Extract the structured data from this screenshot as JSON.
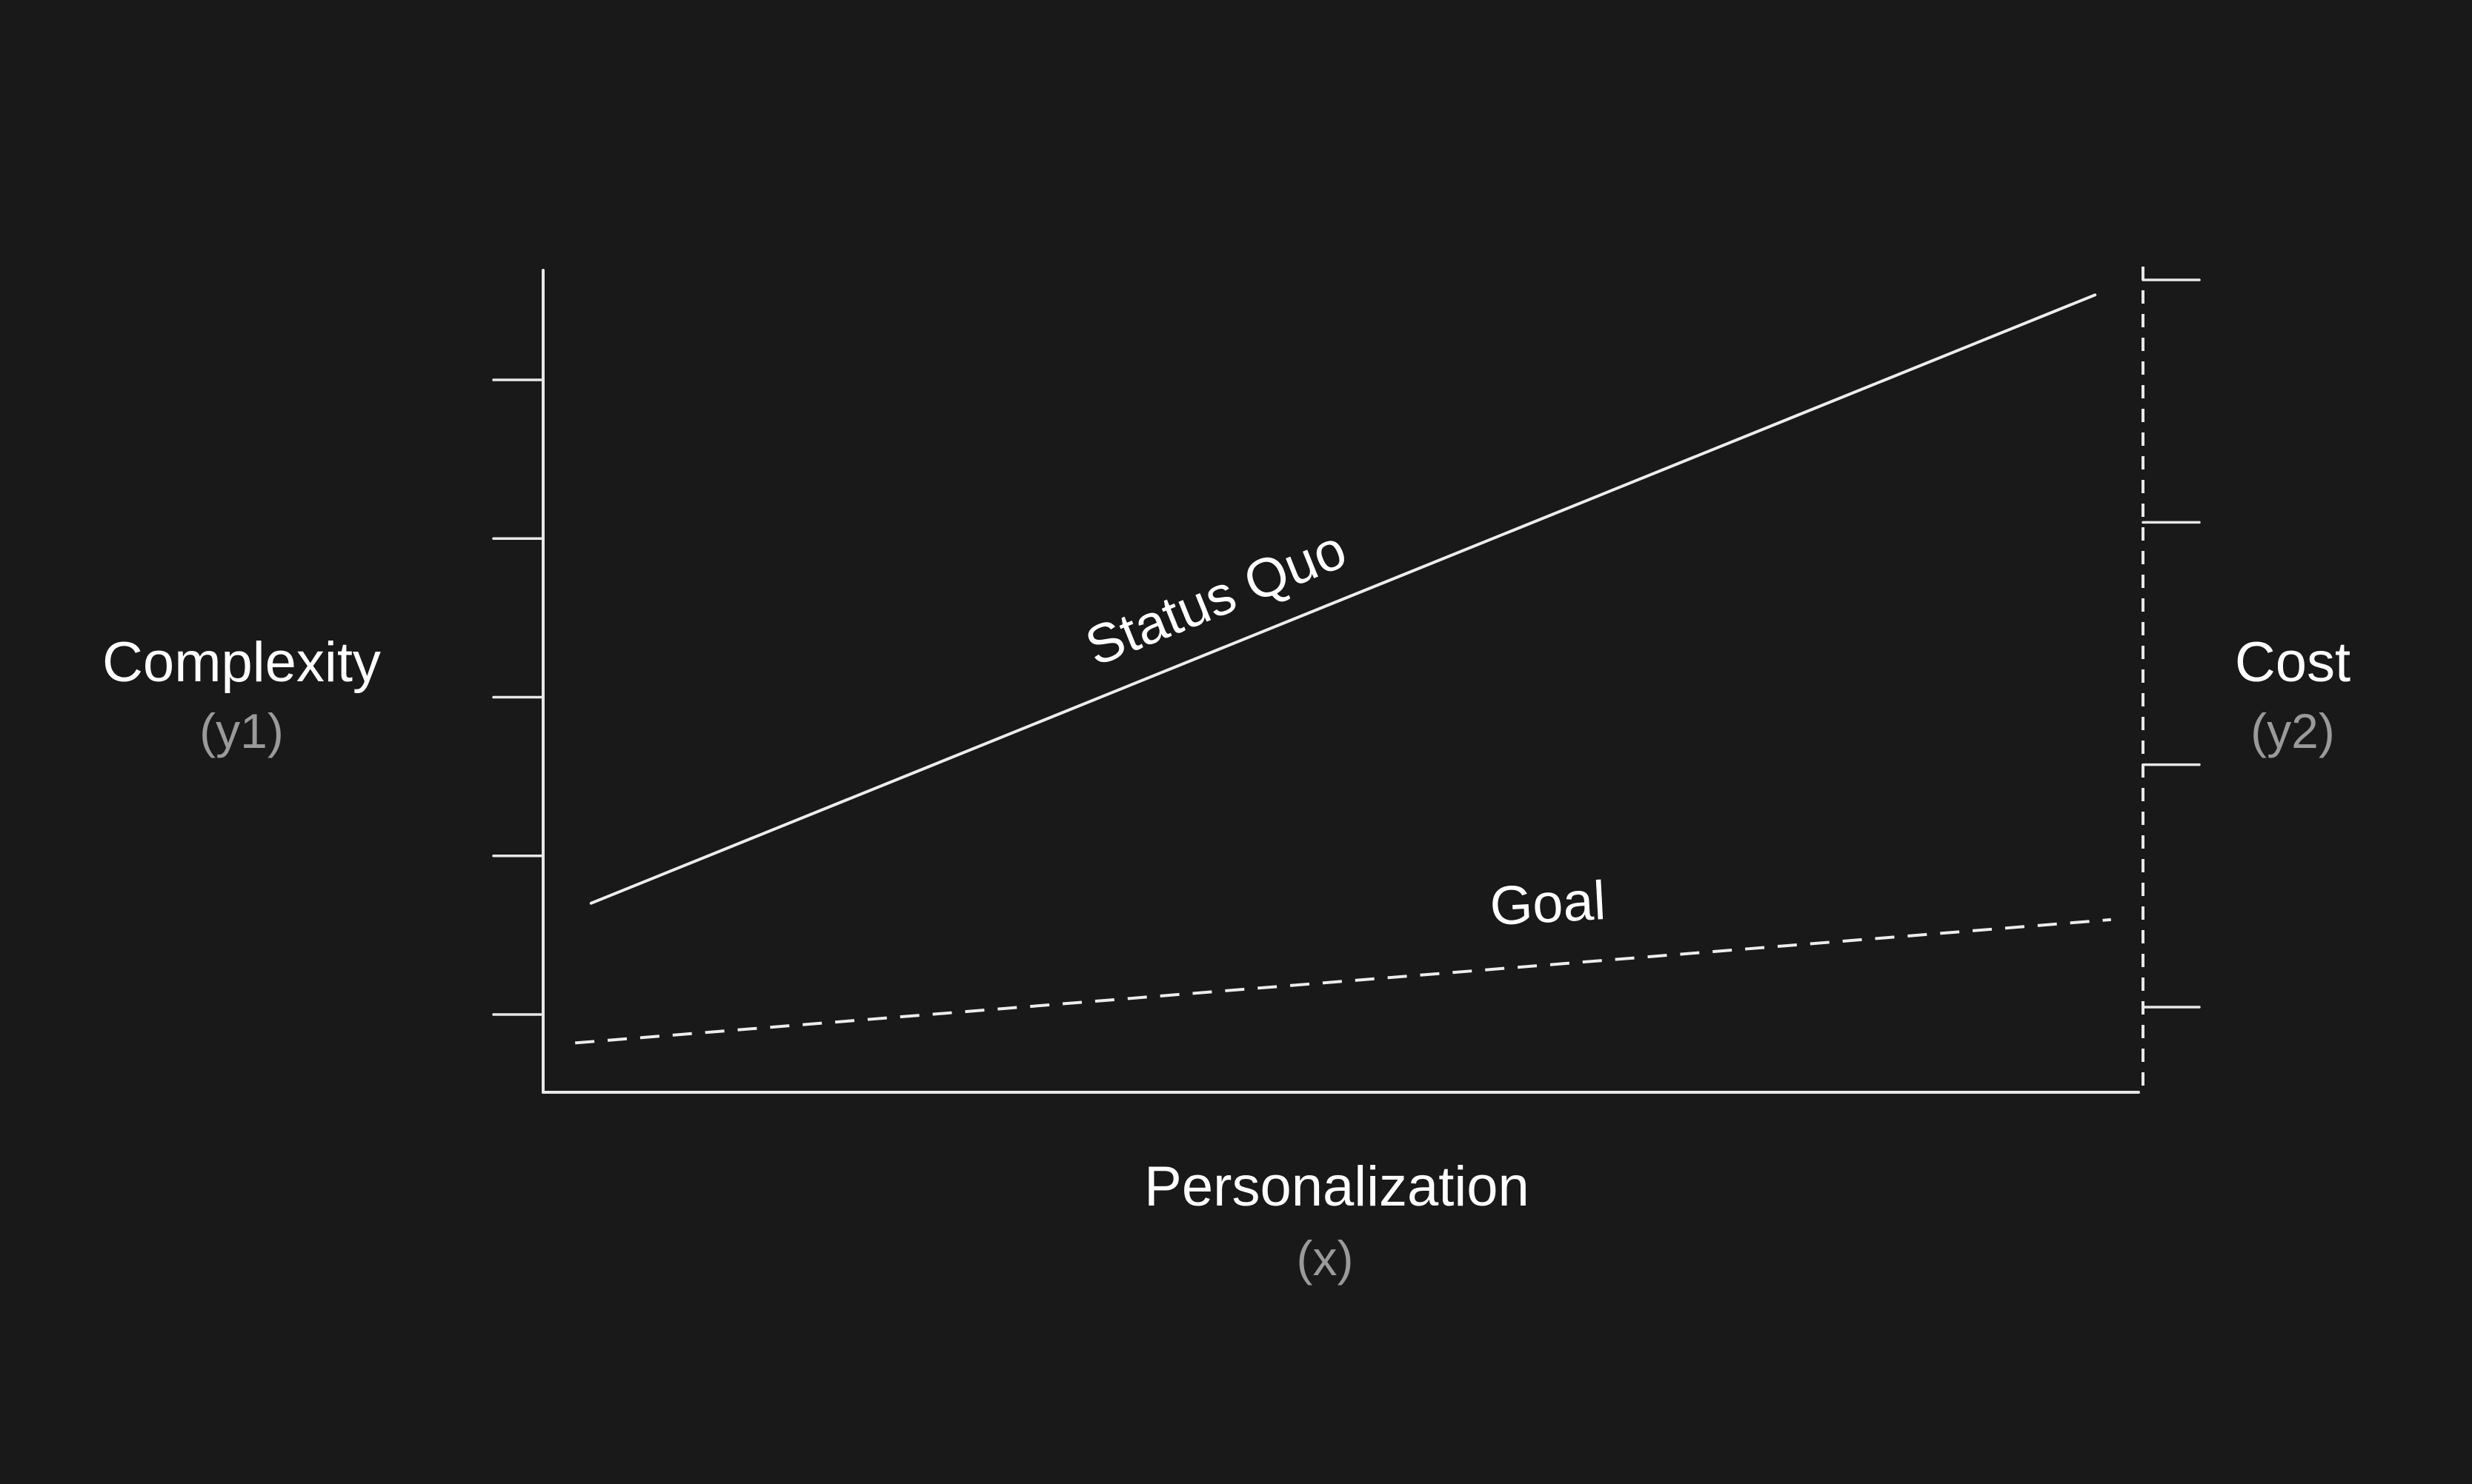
{
  "chart_data": {
    "type": "line",
    "x_axis": {
      "label": "Personalization",
      "sublabel": "(x)"
    },
    "y1_axis": {
      "label": "Complexity",
      "sublabel": "(y1)",
      "tick_count": 5
    },
    "y2_axis": {
      "label": "Cost",
      "sublabel": "(y2)",
      "tick_count": 4,
      "line_style": "dashed"
    },
    "series": [
      {
        "name": "Status Quo",
        "style": "solid",
        "x": [
          0.03,
          0.97
        ],
        "y": [
          0.23,
          0.97
        ]
      },
      {
        "name": "Goal",
        "style": "dashed",
        "x": [
          0.02,
          0.98
        ],
        "y": [
          0.06,
          0.21
        ]
      }
    ],
    "xlim": [
      0,
      1
    ],
    "ylim": [
      0,
      1
    ],
    "grid": false,
    "legend": "none",
    "colors": {
      "background": "#191919",
      "foreground": "#ededed",
      "sublabel": "#9a9a9a"
    }
  }
}
